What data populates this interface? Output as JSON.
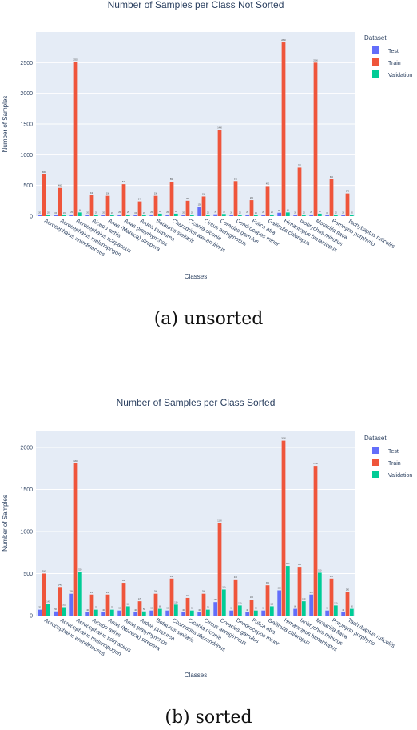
{
  "chart_data": [
    {
      "type": "bar",
      "title": "Number of Samples per Class Not Sorted",
      "xlabel": "Classes",
      "ylabel": "Number of Samples",
      "ylim": [
        0,
        3000
      ],
      "yticks": [
        0,
        500,
        1000,
        1500,
        2000,
        2500
      ],
      "legend_title": "Dataset",
      "legend_position": "top-right",
      "grid": true,
      "categories": [
        "Acrocephalus arundinaceus",
        "Acrocephalus melanopogon",
        "Acrocephalus scirpaceus",
        "Alcedo atthis",
        "Anas (Mareca) strepera",
        "Anas platyrhynchos",
        "Ardea purpurea",
        "Botaurus stellaris",
        "Charadrius alexandrinus",
        "Ciconia ciconia",
        "Circus aeruginosus",
        "Coracias garrulus",
        "Dendrocopos minor",
        "Fulica atra",
        "Gallinula chloropus",
        "Himantopus himantopus",
        "Ixobrychus minutus",
        "Motacilla flava",
        "Porphyrio porphyrio",
        "Tachybaptus ruficollis"
      ],
      "series": [
        {
          "name": "Test",
          "color": "#636efa",
          "values": [
            20,
            15,
            25,
            20,
            20,
            25,
            15,
            25,
            25,
            20,
            150,
            30,
            20,
            25,
            25,
            55,
            20,
            25,
            15,
            20
          ]
        },
        {
          "name": "Train",
          "color": "#ef553b",
          "values": [
            680,
            460,
            2510,
            340,
            330,
            520,
            240,
            330,
            560,
            250,
            320,
            1400,
            570,
            260,
            490,
            2830,
            790,
            2500,
            600,
            370
          ]
        },
        {
          "name": "Validation",
          "color": "#00cc96",
          "values": [
            20,
            15,
            60,
            20,
            15,
            25,
            15,
            40,
            40,
            20,
            20,
            35,
            20,
            15,
            25,
            60,
            20,
            40,
            20,
            20
          ]
        }
      ]
    },
    {
      "type": "bar",
      "title": "Number of Samples per Class Sorted",
      "xlabel": "Classes",
      "ylabel": "Number of Samples",
      "ylim": [
        0,
        2200
      ],
      "yticks": [
        0,
        500,
        1000,
        1500,
        2000
      ],
      "legend_title": "Dataset",
      "legend_position": "top-right",
      "grid": true,
      "categories": [
        "Acrocephalus arundinaceus",
        "Acrocephalus melanopogon",
        "Acrocephalus scirpaceus",
        "Alcedo atthis",
        "Anas (Mareca) strepera",
        "Anas platyrhynchos",
        "Ardea purpurea",
        "Botaurus stellaris",
        "Charadrius alexandrinus",
        "Ciconia ciconia",
        "Circus aeruginosus",
        "Coracias garrulus",
        "Dendrocopos minor",
        "Fulica atra",
        "Gallinula chloropus",
        "Himantopus himantopus",
        "Ixobrychus minutus",
        "Motacilla flava",
        "Porphyrio porphyrio",
        "Tachybaptus ruficollis"
      ],
      "series": [
        {
          "name": "Test",
          "color": "#636efa",
          "values": [
            70,
            50,
            260,
            40,
            40,
            60,
            40,
            60,
            60,
            40,
            40,
            160,
            60,
            40,
            60,
            300,
            80,
            250,
            60,
            40
          ]
        },
        {
          "name": "Train",
          "color": "#ef553b",
          "values": [
            500,
            340,
            1810,
            250,
            250,
            390,
            170,
            260,
            440,
            210,
            260,
            1100,
            430,
            190,
            360,
            2080,
            580,
            1780,
            440,
            280
          ]
        },
        {
          "name": "Validation",
          "color": "#00cc96",
          "values": [
            140,
            100,
            520,
            70,
            70,
            110,
            50,
            80,
            130,
            60,
            70,
            310,
            120,
            60,
            110,
            590,
            170,
            510,
            120,
            80
          ]
        }
      ]
    }
  ],
  "captions": {
    "a": "(a) unsorted",
    "b": "(b) sorted"
  }
}
